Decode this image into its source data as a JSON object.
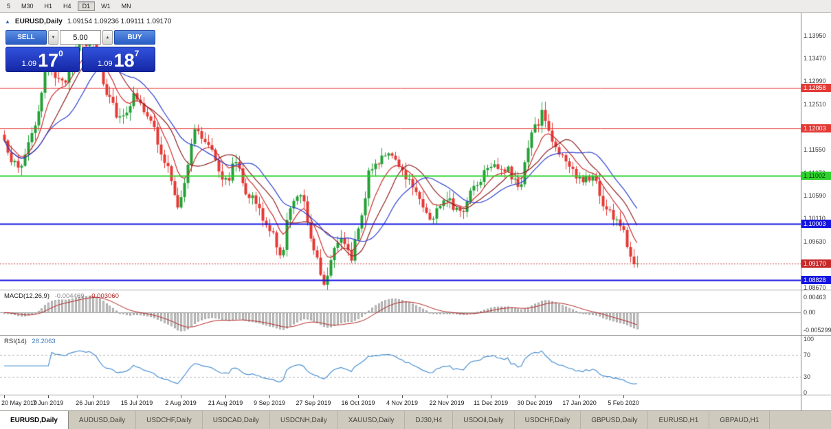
{
  "toolbar": {
    "timeframes": [
      {
        "label": "5",
        "active": false
      },
      {
        "label": "M30",
        "active": false
      },
      {
        "label": "H1",
        "active": false
      },
      {
        "label": "H4",
        "active": false
      },
      {
        "label": "D1",
        "active": true
      },
      {
        "label": "W1",
        "active": false
      },
      {
        "label": "MN",
        "active": false
      }
    ]
  },
  "chart_header": {
    "symbol_period": "EURUSD,Daily",
    "ohlc": "1.09154 1.09236 1.09111 1.09170"
  },
  "icons": {
    "collapse": "▲",
    "spin_down": "▼",
    "spin_up": "▲"
  },
  "trade_panel": {
    "sell_label": "SELL",
    "buy_label": "BUY",
    "lot_value": "5.00",
    "sell_price_small": "1.09",
    "sell_price_big": "17",
    "sell_price_sup": "0",
    "buy_price_small": "1.09",
    "buy_price_big": "18",
    "buy_price_sup": "7"
  },
  "indicators": {
    "macd": {
      "title": "MACD(12,26,9)",
      "value_main": "-0.004469",
      "value_signal": "-0.003060",
      "axis": [
        "0.00463",
        "0.00",
        "-0.005299"
      ]
    },
    "rsi": {
      "title": "RSI(14)",
      "value": "28.2063",
      "axis": [
        "100",
        "70",
        "30",
        "0"
      ],
      "levels": [
        70,
        30
      ]
    }
  },
  "chart_data": {
    "type": "candlestick",
    "symbol": "EURUSD",
    "period": "Daily",
    "x_axis_dates": [
      "20 May 2019",
      "7 Jun 2019",
      "26 Jun 2019",
      "15 Jul 2019",
      "2 Aug 2019",
      "21 Aug 2019",
      "9 Sep 2019",
      "27 Sep 2019",
      "16 Oct 2019",
      "4 Nov 2019",
      "22 Nov 2019",
      "11 Dec 2019",
      "30 Dec 2019",
      "17 Jan 2020",
      "5 Feb 2020"
    ],
    "candles_per_tick": 13,
    "candle_count": 187,
    "y_range": [
      1.0862,
      1.1442
    ],
    "y_tick_start": 1.1395,
    "y_tick_step": 0.0048,
    "y_tick_count": 12,
    "price_path": [
      [
        0,
        1.1165
      ],
      [
        4,
        1.1115
      ],
      [
        9,
        1.1205
      ],
      [
        13,
        1.1335
      ],
      [
        17,
        1.129
      ],
      [
        21,
        1.137
      ],
      [
        26,
        1.138
      ],
      [
        30,
        1.128
      ],
      [
        34,
        1.1225
      ],
      [
        39,
        1.127
      ],
      [
        43,
        1.121
      ],
      [
        47,
        1.113
      ],
      [
        51,
        1.104
      ],
      [
        53,
        1.109
      ],
      [
        56,
        1.1195
      ],
      [
        60,
        1.117
      ],
      [
        65,
        1.109
      ],
      [
        68,
        1.113
      ],
      [
        72,
        1.106
      ],
      [
        78,
        1.099
      ],
      [
        81,
        1.093
      ],
      [
        84,
        1.103
      ],
      [
        87,
        1.107
      ],
      [
        91,
        1.095
      ],
      [
        94,
        1.0882
      ],
      [
        98,
        1.097
      ],
      [
        102,
        1.093
      ],
      [
        104,
        1.1
      ],
      [
        108,
        1.112
      ],
      [
        112,
        1.115
      ],
      [
        117,
        1.111
      ],
      [
        121,
        1.107
      ],
      [
        125,
        1.101
      ],
      [
        130,
        1.106
      ],
      [
        134,
        1.102
      ],
      [
        138,
        1.108
      ],
      [
        143,
        1.113
      ],
      [
        147,
        1.1115
      ],
      [
        151,
        1.108
      ],
      [
        156,
        1.12
      ],
      [
        158,
        1.123
      ],
      [
        162,
        1.116
      ],
      [
        166,
        1.112
      ],
      [
        169,
        1.109
      ],
      [
        173,
        1.11
      ],
      [
        177,
        1.103
      ],
      [
        180,
        1.101
      ],
      [
        182,
        1.098
      ],
      [
        184,
        1.0935
      ],
      [
        186,
        1.0917
      ]
    ],
    "last_close": 1.0917,
    "hlines": [
      {
        "price": 1.12858,
        "color": "#e53935",
        "width": 1,
        "label": "1.12858",
        "text": "#ffffff"
      },
      {
        "price": 1.12003,
        "color": "#e53935",
        "width": 1,
        "label": "1.12003",
        "text": "#ffffff"
      },
      {
        "price": 1.11002,
        "color": "#2fd12f",
        "width": 2,
        "label": "1.11002",
        "text": "#063d06"
      },
      {
        "price": 1.10003,
        "color": "#1414e0",
        "width": 2,
        "label": "1.10003",
        "text": "#ffffff"
      },
      {
        "price": 1.08828,
        "color": "#1414e0",
        "width": 2,
        "label": "1.08828",
        "text": "#ffffff"
      }
    ],
    "bid_line": {
      "price": 1.0917,
      "color": "#c62828",
      "label": "1.09170"
    },
    "ma_lines": [
      {
        "type": "ema",
        "period": 8,
        "color": "#cc2a2a"
      },
      {
        "type": "sma",
        "period": 13,
        "color": "#8b1f1f"
      },
      {
        "type": "sma",
        "period": 20,
        "color": "#2c3fd1"
      }
    ],
    "macd_range": [
      -0.005299,
      0.00463
    ],
    "colors": {
      "up": "#22a036",
      "down": "#e53935",
      "macd_hist": "#c6c6c6",
      "macd_signal": "#b32424",
      "rsi_line": "#4a90d2"
    }
  },
  "tabs": [
    {
      "label": "EURUSD,Daily",
      "active": true
    },
    {
      "label": "AUDUSD,Daily",
      "active": false
    },
    {
      "label": "USDCHF,Daily",
      "active": false
    },
    {
      "label": "USDCAD,Daily",
      "active": false
    },
    {
      "label": "USDCNH,Daily",
      "active": false
    },
    {
      "label": "XAUUSD,Daily",
      "active": false
    },
    {
      "label": "DJ30,H4",
      "active": false
    },
    {
      "label": "USDOil,Daily",
      "active": false
    },
    {
      "label": "USDCHF,Daily",
      "active": false
    },
    {
      "label": "GBPUSD,Daily",
      "active": false
    },
    {
      "label": "EURUSD,H1",
      "active": false
    },
    {
      "label": "GBPAUD,H1",
      "active": false
    }
  ]
}
